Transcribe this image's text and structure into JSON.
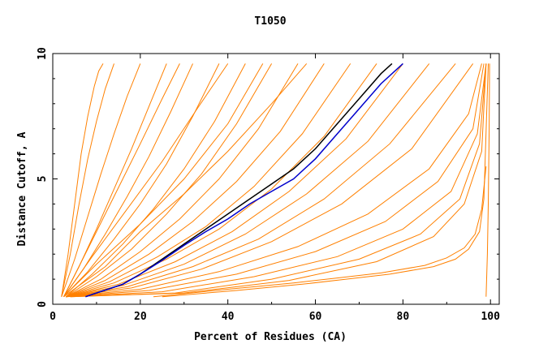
{
  "chart_data": {
    "type": "line",
    "title": "T1050",
    "xlabel": "Percent of Residues (CA)",
    "ylabel": "Distance Cutoff, A",
    "xlim": [
      0,
      102
    ],
    "ylim": [
      0,
      10
    ],
    "x_ticks": [
      0,
      20,
      40,
      60,
      80,
      100
    ],
    "y_ticks": [
      0,
      5,
      10
    ],
    "grid": false,
    "legend": "none",
    "colors": {
      "models": "#ff8000",
      "highlight_black": "#000000",
      "highlight_blue": "#0000cc",
      "axes": "#000000",
      "background": "#ffffff"
    },
    "series": [
      {
        "x": [
          2.0,
          3.5,
          5.0,
          6.5,
          8.0,
          9.5,
          10.5,
          11.5
        ],
        "y": [
          0.3,
          2.0,
          4.0,
          6.0,
          7.5,
          8.7,
          9.3,
          9.6
        ]
      },
      {
        "x": [
          2.0,
          4.0,
          6.0,
          8.0,
          10.0,
          12.0,
          14.0
        ],
        "y": [
          0.3,
          2.0,
          4.0,
          5.8,
          7.3,
          8.6,
          9.6
        ]
      },
      {
        "x": [
          2.0,
          5.0,
          8.0,
          11.0,
          14.0,
          17.0,
          20.0
        ],
        "y": [
          0.3,
          1.8,
          3.5,
          5.2,
          6.8,
          8.3,
          9.6
        ]
      },
      {
        "x": [
          2.5,
          6.0,
          10.0,
          14.0,
          18.0,
          22.0,
          26.0
        ],
        "y": [
          0.3,
          1.5,
          3.0,
          4.6,
          6.2,
          7.9,
          9.6
        ]
      },
      {
        "x": [
          2.5,
          7.0,
          12.0,
          17.0,
          22.0,
          27.0,
          32.0
        ],
        "y": [
          0.3,
          1.4,
          2.8,
          4.3,
          5.9,
          7.7,
          9.6
        ]
      },
      {
        "x": [
          2.5,
          8.0,
          14.0,
          20.0,
          26.0,
          32.0,
          38.0
        ],
        "y": [
          0.3,
          1.3,
          2.6,
          4.0,
          5.6,
          7.5,
          9.6
        ]
      },
      {
        "x": [
          3.0,
          9.0,
          16.0,
          23.0,
          30.0,
          37.0,
          44.0
        ],
        "y": [
          0.3,
          1.2,
          2.4,
          3.8,
          5.4,
          7.3,
          9.6
        ]
      },
      {
        "x": [
          3.0,
          10.0,
          18.0,
          26.0,
          34.0,
          42.0,
          50.0
        ],
        "y": [
          0.3,
          1.1,
          2.2,
          3.6,
          5.2,
          7.2,
          9.6
        ]
      },
      {
        "x": [
          3.0,
          11.0,
          20.0,
          29.0,
          38.0,
          47.0,
          56.0
        ],
        "y": [
          0.3,
          1.0,
          2.1,
          3.4,
          5.0,
          7.0,
          9.6
        ]
      },
      {
        "x": [
          3.0,
          12.0,
          22.0,
          32.0,
          42.0,
          52.0,
          62.0
        ],
        "y": [
          0.3,
          0.95,
          2.0,
          3.3,
          4.9,
          6.9,
          9.6
        ]
      },
      {
        "x": [
          3.0,
          13.0,
          24.0,
          35.0,
          46.0,
          57.0,
          68.0
        ],
        "y": [
          0.3,
          0.9,
          1.9,
          3.1,
          4.7,
          6.8,
          9.6
        ]
      },
      {
        "x": [
          3.0,
          14.0,
          26.0,
          38.0,
          50.0,
          62.0,
          74.0
        ],
        "y": [
          0.3,
          0.85,
          1.8,
          3.0,
          4.6,
          6.7,
          9.6
        ]
      },
      {
        "x": [
          3.0,
          15.0,
          28.0,
          41.0,
          54.0,
          67.0,
          80.0
        ],
        "y": [
          0.3,
          0.8,
          1.7,
          2.9,
          4.5,
          6.6,
          9.6
        ]
      },
      {
        "x": [
          3.0,
          16.0,
          30.0,
          44.0,
          58.0,
          72.0,
          86.0
        ],
        "y": [
          0.3,
          0.75,
          1.6,
          2.8,
          4.4,
          6.5,
          9.6
        ]
      },
      {
        "x": [
          3.0,
          17.0,
          32.0,
          47.0,
          62.0,
          77.0,
          92.0
        ],
        "y": [
          0.3,
          0.7,
          1.5,
          2.6,
          4.2,
          6.4,
          9.6
        ]
      },
      {
        "x": [
          3.0,
          18.0,
          34.0,
          50.0,
          66.0,
          82.0,
          96.0
        ],
        "y": [
          0.3,
          0.65,
          1.4,
          2.5,
          4.0,
          6.2,
          9.6
        ]
      },
      {
        "x": [
          3.0,
          20.0,
          38.0,
          56.0,
          72.0,
          86.0,
          95.0,
          98.0
        ],
        "y": [
          0.3,
          0.6,
          1.3,
          2.3,
          3.6,
          5.4,
          7.6,
          9.6
        ]
      },
      {
        "x": [
          3.0,
          22.0,
          42.0,
          60.0,
          76.0,
          88.0,
          96.0,
          98.5
        ],
        "y": [
          0.3,
          0.55,
          1.2,
          2.1,
          3.3,
          4.9,
          7.0,
          9.6
        ]
      },
      {
        "x": [
          3.0,
          25.0,
          46.0,
          65.0,
          80.0,
          91.0,
          97.0,
          99.0
        ],
        "y": [
          0.3,
          0.5,
          1.1,
          1.9,
          3.0,
          4.5,
          6.8,
          9.6
        ]
      },
      {
        "x": [
          4.0,
          28.0,
          50.0,
          70.0,
          84.0,
          93.0,
          97.5,
          99.0
        ],
        "y": [
          0.3,
          0.45,
          1.0,
          1.8,
          2.8,
          4.2,
          6.4,
          9.6
        ]
      },
      {
        "x": [
          4.0,
          30.0,
          54.0,
          74.0,
          87.0,
          94.0,
          98.0,
          99.0
        ],
        "y": [
          0.3,
          0.45,
          0.95,
          1.7,
          2.7,
          4.0,
          6.1,
          9.6
        ]
      },
      {
        "x": [
          2.5,
          12.0,
          20.0,
          30.0,
          40.0,
          50.0,
          58.0
        ],
        "y": [
          0.3,
          1.5,
          2.9,
          4.4,
          6.1,
          8.0,
          9.6
        ]
      },
      {
        "x": [
          2.5,
          8.0,
          14.0,
          20.0,
          25.0,
          29.0
        ],
        "y": [
          0.3,
          2.2,
          4.3,
          6.4,
          8.2,
          9.6
        ]
      },
      {
        "x": [
          2.5,
          9.0,
          17.0,
          25.0,
          33.0,
          40.0
        ],
        "y": [
          0.3,
          1.9,
          3.8,
          5.7,
          7.8,
          9.6
        ]
      },
      {
        "x": [
          2.5,
          10.0,
          20.0,
          30.0,
          40.0,
          48.0
        ],
        "y": [
          0.3,
          1.6,
          3.2,
          5.0,
          7.2,
          9.6
        ]
      },
      {
        "x": [
          23.0,
          40.0,
          55.0,
          65.0,
          75.0,
          85.0,
          90.0,
          94.0,
          96.5,
          98.0,
          99.0
        ],
        "y": [
          0.3,
          0.6,
          0.85,
          1.05,
          1.25,
          1.55,
          1.85,
          2.25,
          2.8,
          3.8,
          5.5
        ]
      },
      {
        "x": [
          25.0,
          42.0,
          57.0,
          67.0,
          77.0,
          87.0,
          92.0,
          95.0,
          97.5,
          98.5,
          99.5
        ],
        "y": [
          0.3,
          0.55,
          0.8,
          1.0,
          1.2,
          1.5,
          1.8,
          2.2,
          2.9,
          4.2,
          9.6
        ]
      },
      {
        "x": [
          99.0,
          99.3,
          99.5,
          99.7,
          99.8
        ],
        "y": [
          0.3,
          2.0,
          4.0,
          7.0,
          9.6
        ]
      }
    ],
    "highlight": [
      {
        "color": "black",
        "x": [
          7.5,
          10.0,
          16.0,
          20.0,
          25.0,
          30.0,
          35.0,
          40.0,
          45.0,
          50.0,
          55.0,
          60.0,
          65.0,
          70.0,
          75.0,
          77.5
        ],
        "y": [
          0.3,
          0.45,
          0.8,
          1.2,
          1.8,
          2.4,
          3.0,
          3.6,
          4.2,
          4.8,
          5.4,
          6.2,
          7.2,
          8.2,
          9.2,
          9.6
        ]
      },
      {
        "color": "blue",
        "x": [
          7.5,
          10.0,
          16.0,
          20.0,
          25.0,
          30.0,
          35.0,
          40.0,
          45.0,
          50.0,
          55.0,
          60.0,
          65.0,
          70.0,
          75.0,
          80.0
        ],
        "y": [
          0.3,
          0.45,
          0.8,
          1.2,
          1.75,
          2.35,
          2.9,
          3.4,
          4.0,
          4.5,
          5.0,
          5.8,
          6.8,
          7.8,
          8.8,
          9.6
        ]
      }
    ]
  }
}
